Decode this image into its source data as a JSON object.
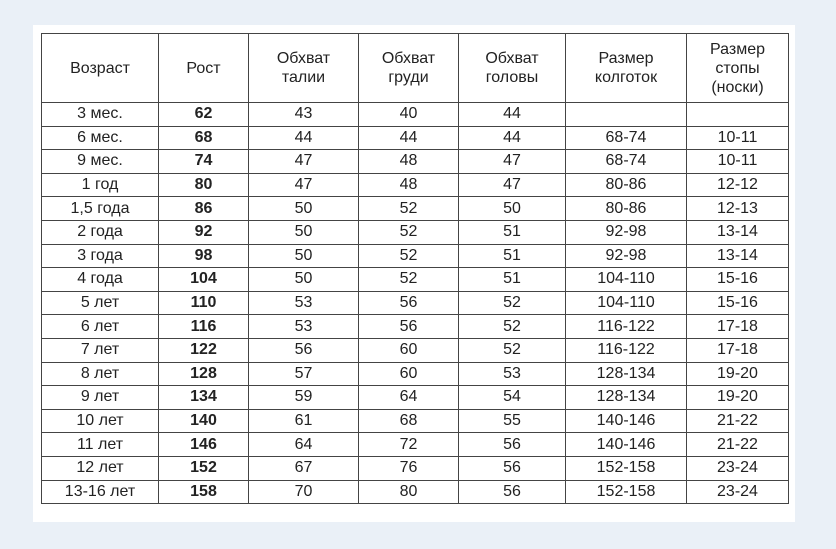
{
  "headers": [
    "Возраст",
    "Рост",
    "Обхват\nталии",
    "Обхват\nгруди",
    "Обхват\nголовы",
    "Размер\nколготок",
    "Размер\nстопы\n(носки)"
  ],
  "rows": [
    [
      "3 мес.",
      "62",
      "43",
      "40",
      "44",
      "",
      ""
    ],
    [
      "6 мес.",
      "68",
      "44",
      "44",
      "44",
      "68-74",
      "10-11"
    ],
    [
      "9 мес.",
      "74",
      "47",
      "48",
      "47",
      "68-74",
      "10-11"
    ],
    [
      "1 год",
      "80",
      "47",
      "48",
      "47",
      "80-86",
      "12-12"
    ],
    [
      "1,5 года",
      "86",
      "50",
      "52",
      "50",
      "80-86",
      "12-13"
    ],
    [
      "2 года",
      "92",
      "50",
      "52",
      "51",
      "92-98",
      "13-14"
    ],
    [
      "3 года",
      "98",
      "50",
      "52",
      "51",
      "92-98",
      "13-14"
    ],
    [
      "4 года",
      "104",
      "50",
      "52",
      "51",
      "104-110",
      "15-16"
    ],
    [
      "5 лет",
      "110",
      "53",
      "56",
      "52",
      "104-110",
      "15-16"
    ],
    [
      "6 лет",
      "116",
      "53",
      "56",
      "52",
      "116-122",
      "17-18"
    ],
    [
      "7 лет",
      "122",
      "56",
      "60",
      "52",
      "116-122",
      "17-18"
    ],
    [
      "8 лет",
      "128",
      "57",
      "60",
      "53",
      "128-134",
      "19-20"
    ],
    [
      "9 лет",
      "134",
      "59",
      "64",
      "54",
      "128-134",
      "19-20"
    ],
    [
      "10 лет",
      "140",
      "61",
      "68",
      "55",
      "140-146",
      "21-22"
    ],
    [
      "11 лет",
      "146",
      "64",
      "72",
      "56",
      "140-146",
      "21-22"
    ],
    [
      "12 лет",
      "152",
      "67",
      "76",
      "56",
      "152-158",
      "23-24"
    ],
    [
      "13-16 лет",
      "158",
      "70",
      "80",
      "56",
      "152-158",
      "23-24"
    ]
  ]
}
